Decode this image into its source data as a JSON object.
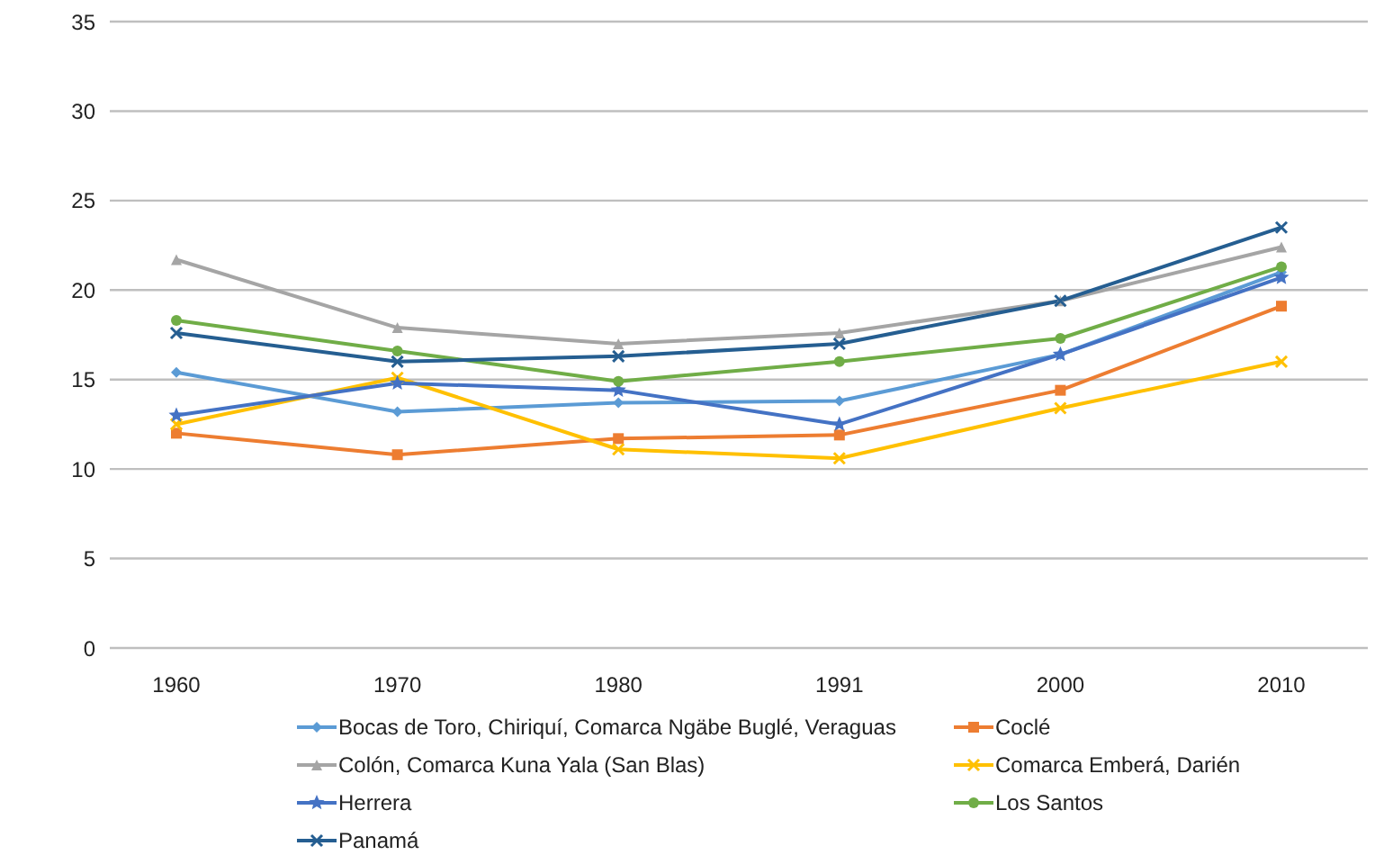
{
  "chart_data": {
    "type": "line",
    "categories": [
      "1960",
      "1970",
      "1980",
      "1991",
      "2000",
      "2010"
    ],
    "series": [
      {
        "name": "Bocas de Toro, Chiriquí, Comarca Ngäbe  Buglé, Veraguas",
        "color": "#5b9bd5",
        "marker": "diamond",
        "values": [
          15.4,
          13.2,
          13.7,
          13.8,
          16.4,
          21.0
        ]
      },
      {
        "name": "Coclé",
        "color": "#ed7d31",
        "marker": "square",
        "values": [
          12.0,
          10.8,
          11.7,
          11.9,
          14.4,
          19.1
        ]
      },
      {
        "name": "Colón, Comarca Kuna  Yala (San Blas)",
        "color": "#a5a5a5",
        "marker": "triangle",
        "values": [
          21.7,
          17.9,
          17.0,
          17.6,
          19.4,
          22.4
        ]
      },
      {
        "name": "Comarca Emberá, Darién",
        "color": "#ffc000",
        "marker": "cross",
        "values": [
          12.5,
          15.1,
          11.1,
          10.6,
          13.4,
          16.0
        ]
      },
      {
        "name": "Herrera",
        "color": "#4472c4",
        "marker": "star",
        "values": [
          13.0,
          14.8,
          14.4,
          12.5,
          16.4,
          20.7
        ]
      },
      {
        "name": "Los Santos",
        "color": "#70ad47",
        "marker": "circle",
        "values": [
          18.3,
          16.6,
          14.9,
          16.0,
          17.3,
          21.3
        ]
      },
      {
        "name": "Panamá",
        "color": "#255e91",
        "marker": "cross",
        "values": [
          17.6,
          16.0,
          16.3,
          17.0,
          19.4,
          23.5
        ]
      }
    ],
    "ylim": [
      0,
      35
    ],
    "yticks": [
      0,
      5,
      10,
      15,
      20,
      25,
      30,
      35
    ],
    "grid": "y",
    "legend": "bottom"
  }
}
